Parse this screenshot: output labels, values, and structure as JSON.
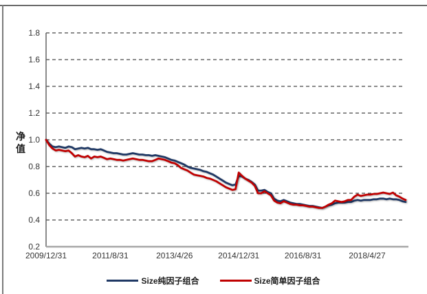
{
  "chart_data": {
    "type": "line",
    "title": "",
    "xlabel": "",
    "ylabel": "净值",
    "ylim": [
      0.2,
      1.8
    ],
    "y_ticks": [
      0.2,
      0.4,
      0.6,
      0.8,
      1.0,
      1.2,
      1.4,
      1.6,
      1.8
    ],
    "grid": "horizontal-dashed",
    "legend_position": "bottom",
    "x_interval": "monthly",
    "x_ticks": [
      {
        "label": "2009/12/31",
        "month": 0
      },
      {
        "label": "2011/8/31",
        "month": 20
      },
      {
        "label": "2013/4/26",
        "month": 40
      },
      {
        "label": "2014/12/31",
        "month": 60
      },
      {
        "label": "2016/8/31",
        "month": 80
      },
      {
        "label": "2018/4/27",
        "month": 100
      }
    ],
    "series": [
      {
        "name": "Size纯因子组合",
        "color": "#1F3864",
        "values": [
          1.0,
          0.97,
          0.95,
          0.945,
          0.95,
          0.945,
          0.94,
          0.95,
          0.945,
          0.93,
          0.935,
          0.94,
          0.935,
          0.94,
          0.93,
          0.93,
          0.925,
          0.93,
          0.92,
          0.91,
          0.905,
          0.9,
          0.9,
          0.895,
          0.89,
          0.89,
          0.895,
          0.9,
          0.895,
          0.89,
          0.89,
          0.885,
          0.885,
          0.88,
          0.885,
          0.88,
          0.875,
          0.87,
          0.86,
          0.85,
          0.845,
          0.835,
          0.825,
          0.815,
          0.8,
          0.79,
          0.785,
          0.78,
          0.775,
          0.765,
          0.76,
          0.75,
          0.74,
          0.725,
          0.71,
          0.695,
          0.68,
          0.67,
          0.66,
          0.665,
          0.73,
          0.725,
          0.71,
          0.7,
          0.685,
          0.665,
          0.62,
          0.62,
          0.625,
          0.61,
          0.6,
          0.56,
          0.545,
          0.54,
          0.55,
          0.54,
          0.53,
          0.525,
          0.52,
          0.52,
          0.515,
          0.51,
          0.505,
          0.505,
          0.5,
          0.495,
          0.49,
          0.5,
          0.51,
          0.515,
          0.525,
          0.53,
          0.53,
          0.53,
          0.535,
          0.535,
          0.545,
          0.55,
          0.545,
          0.55,
          0.55,
          0.55,
          0.555,
          0.555,
          0.56,
          0.56,
          0.555,
          0.56,
          0.555,
          0.555,
          0.55,
          0.54,
          0.535
        ]
      },
      {
        "name": "Size简单因子组合",
        "color": "#C00000",
        "values": [
          1.0,
          0.96,
          0.935,
          0.92,
          0.925,
          0.92,
          0.915,
          0.92,
          0.9,
          0.875,
          0.885,
          0.875,
          0.87,
          0.88,
          0.86,
          0.875,
          0.87,
          0.875,
          0.865,
          0.855,
          0.86,
          0.855,
          0.85,
          0.85,
          0.845,
          0.85,
          0.855,
          0.86,
          0.855,
          0.85,
          0.85,
          0.845,
          0.84,
          0.84,
          0.85,
          0.86,
          0.855,
          0.85,
          0.84,
          0.83,
          0.825,
          0.81,
          0.79,
          0.78,
          0.77,
          0.755,
          0.74,
          0.735,
          0.73,
          0.725,
          0.715,
          0.71,
          0.7,
          0.69,
          0.675,
          0.66,
          0.645,
          0.635,
          0.625,
          0.63,
          0.755,
          0.73,
          0.71,
          0.695,
          0.68,
          0.655,
          0.6,
          0.6,
          0.615,
          0.6,
          0.585,
          0.545,
          0.53,
          0.525,
          0.54,
          0.53,
          0.52,
          0.515,
          0.515,
          0.51,
          0.51,
          0.505,
          0.5,
          0.5,
          0.495,
          0.49,
          0.49,
          0.5,
          0.515,
          0.525,
          0.545,
          0.54,
          0.535,
          0.54,
          0.55,
          0.55,
          0.575,
          0.59,
          0.58,
          0.585,
          0.59,
          0.59,
          0.595,
          0.595,
          0.6,
          0.605,
          0.6,
          0.595,
          0.605,
          0.585,
          0.575,
          0.56,
          0.55
        ]
      }
    ]
  }
}
